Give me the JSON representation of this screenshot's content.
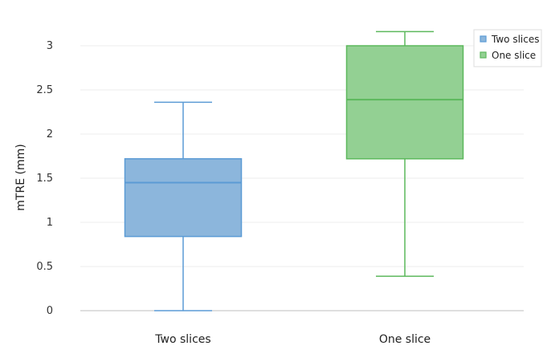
{
  "chart_data": {
    "type": "box",
    "title": "",
    "xlabel": "",
    "ylabel": "mTRE (mm)",
    "ylim": [
      0,
      3.2
    ],
    "yticks": [
      0,
      0.5,
      1,
      1.5,
      2,
      2.5,
      3
    ],
    "yticklabels": [
      "0",
      "0.5",
      "1",
      "1.5",
      "2",
      "2.5",
      "3"
    ],
    "grid": true,
    "legend_position": "top-right",
    "categories": [
      "Two slices",
      "One slice"
    ],
    "series": [
      {
        "name": "Two slices",
        "color": "#5b9bd5",
        "fill": "#8cb6dc",
        "min": 0.0,
        "q1": 0.84,
        "median": 1.45,
        "q3": 1.72,
        "max": 2.36
      },
      {
        "name": "One slice",
        "color": "#5cb85c",
        "fill": "#93d093",
        "min": 0.39,
        "q1": 1.72,
        "median": 2.39,
        "q3": 3.0,
        "max": 3.16
      }
    ]
  }
}
